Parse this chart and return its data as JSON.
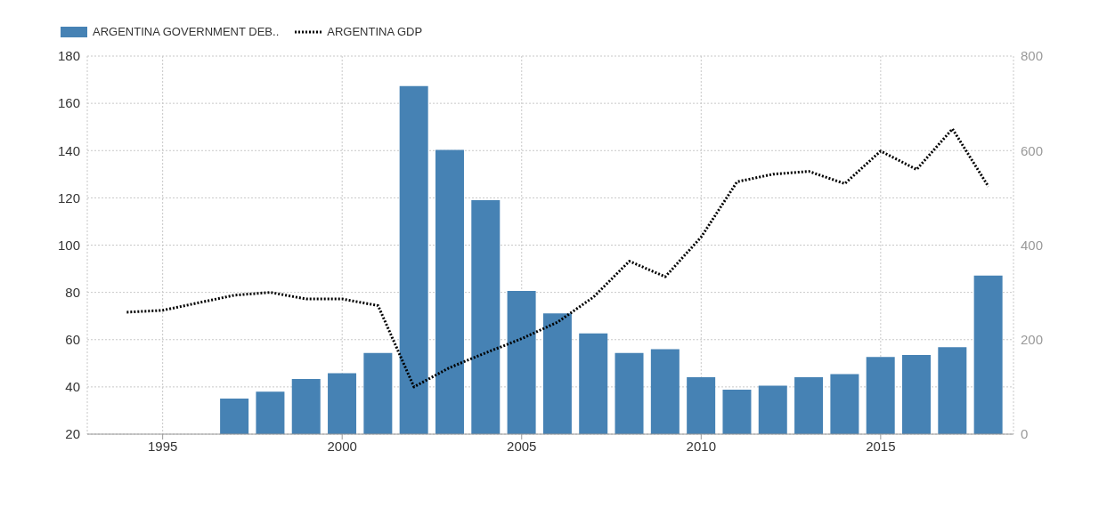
{
  "chart_data": {
    "type": "bar",
    "x": [
      1994,
      1995,
      1996,
      1997,
      1998,
      1999,
      2000,
      2001,
      2002,
      2003,
      2004,
      2005,
      2006,
      2007,
      2008,
      2009,
      2010,
      2011,
      2012,
      2013,
      2014,
      2015,
      2016,
      2017,
      2018
    ],
    "series": [
      {
        "name": "ARGENTINA GOVERNMENT DEB..",
        "color": "#4682b4",
        "values": [
          null,
          null,
          null,
          35.1,
          38,
          43.3,
          45.8,
          54.4,
          167.3,
          140.3,
          119,
          80.6,
          71.1,
          62.6,
          54.4,
          56,
          44.1,
          38.8,
          40.5,
          44.1,
          45.4,
          52.7,
          53.5,
          56.8,
          87.1
        ]
      },
      {
        "name": "ARGENTINA GDP",
        "type": "line",
        "axis": "y2",
        "color": "#000000",
        "line_style": "dotted",
        "marker": "none",
        "values": [
          258,
          262,
          278,
          294,
          300,
          286,
          286,
          272,
          100,
          141,
          172,
          202,
          237,
          290,
          366,
          333,
          417,
          534,
          550,
          556,
          530,
          599,
          560,
          646,
          524
        ]
      }
    ],
    "xlim": [
      1992.9,
      2018.7
    ],
    "xticks": [
      1995,
      2000,
      2005,
      2010,
      2015
    ],
    "ylim": [
      20,
      180
    ],
    "yticks": [
      20,
      40,
      60,
      80,
      100,
      120,
      140,
      160,
      180
    ],
    "y2lim": [
      0,
      800
    ],
    "y2ticks": [
      0,
      200,
      400,
      600,
      800
    ],
    "grid": true,
    "legend": "top left"
  }
}
